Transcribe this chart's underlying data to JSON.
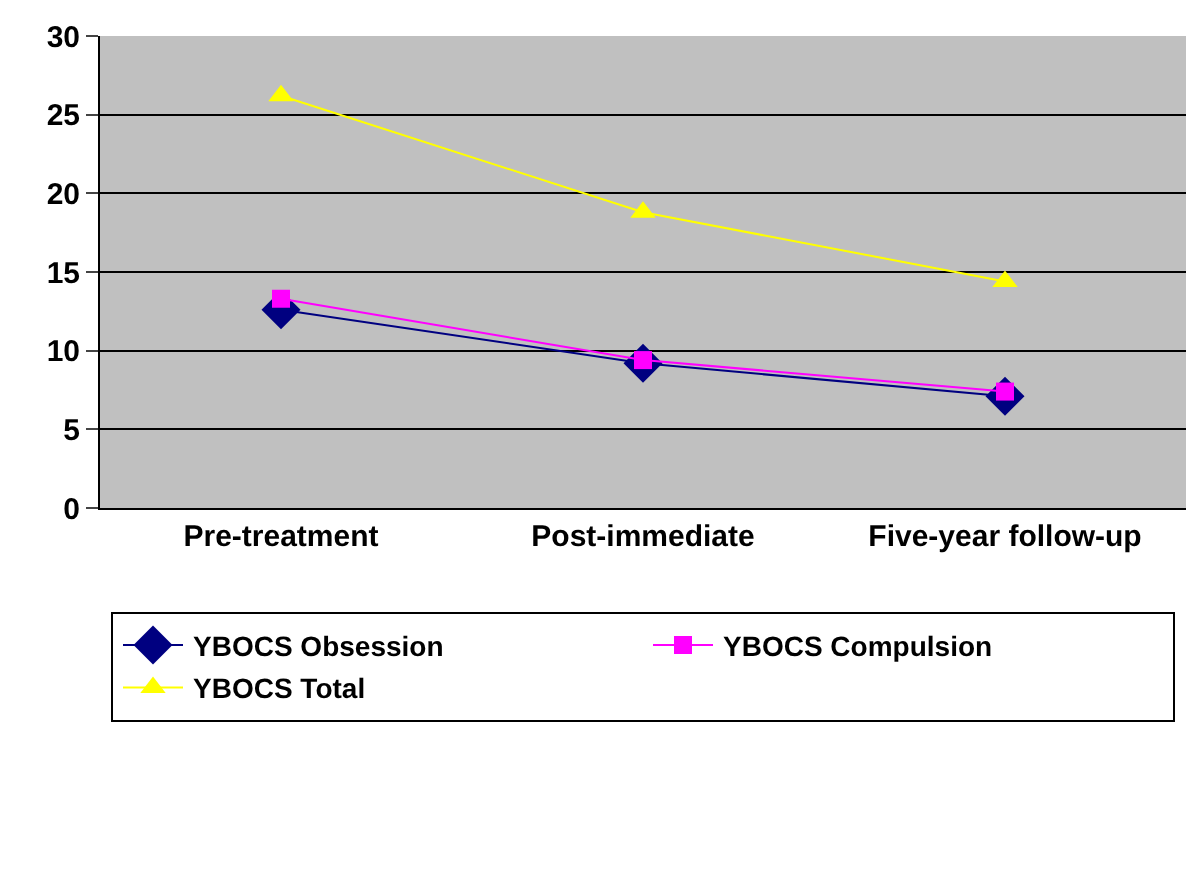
{
  "chart_data": {
    "type": "line",
    "categories": [
      "Pre-treatment",
      "Post-immediate",
      "Five-year follow-up"
    ],
    "series": [
      {
        "name": "YBOCS Obsession",
        "color": "#000080",
        "marker": "diamond",
        "values": [
          12.6,
          9.2,
          7.1
        ]
      },
      {
        "name": "YBOCS Compulsion",
        "color": "#ff00ff",
        "marker": "square",
        "values": [
          13.3,
          9.4,
          7.4
        ]
      },
      {
        "name": "YBOCS Total",
        "color": "#ffff00",
        "marker": "triangle",
        "values": [
          26.2,
          18.8,
          14.4
        ]
      }
    ],
    "ylim": [
      0,
      30
    ],
    "yticks": [
      0,
      5,
      10,
      15,
      20,
      25,
      30
    ],
    "grid": "y",
    "legend": "bottom",
    "line_style": "solid"
  }
}
